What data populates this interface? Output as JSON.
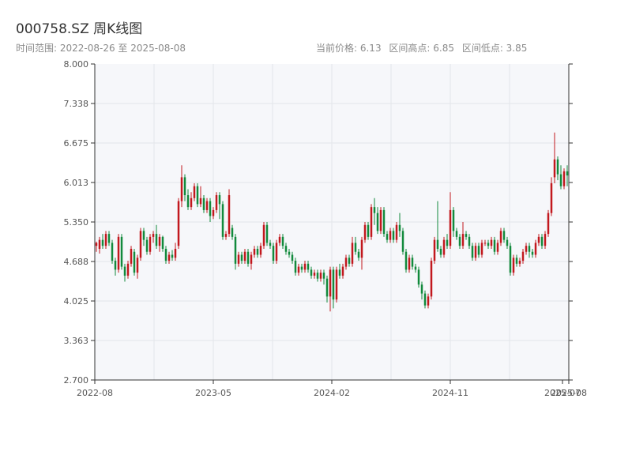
{
  "header": {
    "title": "000758.SZ 周K线图",
    "range_label": "时间范围: 2022-08-26 至 2025-08-08",
    "current_price_label": "当前价格: 6.13",
    "high_label": "区间高点: 6.85",
    "low_label": "区间低点: 3.85"
  },
  "colors": {
    "up": "#c2181e",
    "down": "#128a3c",
    "plot_bg": "#f6f7fa",
    "grid": "#e3e5ea",
    "axis": "#333333",
    "tick_text": "#555555"
  },
  "chart_data": {
    "type": "candlestick",
    "title": "000758.SZ 周K线图",
    "ylim": [
      2.7,
      8.0
    ],
    "ytick_labels": [
      "2.700",
      "3.363",
      "4.025",
      "4.688",
      "5.350",
      "6.013",
      "6.675",
      "7.338",
      "8.000"
    ],
    "xtick_labels": [
      "2022-08",
      "2023-05",
      "2024-02",
      "2024-11",
      "2025-07",
      "2025-08"
    ],
    "grid": true,
    "x_start": "2022-08-26",
    "x_end": "2025-08-08",
    "interval": "weekly",
    "candles": [
      [
        4.95,
        5.0,
        4.85,
        5.02
      ],
      [
        4.9,
        5.05,
        4.82,
        5.1
      ],
      [
        5.05,
        4.95,
        4.9,
        5.15
      ],
      [
        4.95,
        5.15,
        4.9,
        5.2
      ],
      [
        5.15,
        5.0,
        4.95,
        5.2
      ],
      [
        5.0,
        4.7,
        4.65,
        5.05
      ],
      [
        4.7,
        4.55,
        4.45,
        4.75
      ],
      [
        4.55,
        5.1,
        4.5,
        5.15
      ],
      [
        5.1,
        4.6,
        4.55,
        5.15
      ],
      [
        4.6,
        4.45,
        4.35,
        4.65
      ],
      [
        4.45,
        4.65,
        4.4,
        4.7
      ],
      [
        4.65,
        4.9,
        4.6,
        4.95
      ],
      [
        4.85,
        4.5,
        4.45,
        4.9
      ],
      [
        4.5,
        4.75,
        4.4,
        4.8
      ],
      [
        4.75,
        5.2,
        4.7,
        5.25
      ],
      [
        5.2,
        5.05,
        4.95,
        5.25
      ],
      [
        5.05,
        4.85,
        4.8,
        5.1
      ],
      [
        4.85,
        5.1,
        4.8,
        5.15
      ],
      [
        5.1,
        5.15,
        5.0,
        5.2
      ],
      [
        5.15,
        4.95,
        4.9,
        5.3
      ],
      [
        4.95,
        5.1,
        4.85,
        5.15
      ],
      [
        5.1,
        4.9,
        4.85,
        5.12
      ],
      [
        4.9,
        4.7,
        4.65,
        4.95
      ],
      [
        4.7,
        4.8,
        4.65,
        4.85
      ],
      [
        4.8,
        4.75,
        4.7,
        4.88
      ],
      [
        4.75,
        4.9,
        4.7,
        5.0
      ],
      [
        4.95,
        5.7,
        4.9,
        5.75
      ],
      [
        5.7,
        6.1,
        5.6,
        6.3
      ],
      [
        6.1,
        5.8,
        5.7,
        6.15
      ],
      [
        5.8,
        5.6,
        5.55,
        5.9
      ],
      [
        5.6,
        5.75,
        5.55,
        5.85
      ],
      [
        5.75,
        5.95,
        5.7,
        6.0
      ],
      [
        5.95,
        5.65,
        5.6,
        6.0
      ],
      [
        5.65,
        5.75,
        5.6,
        5.95
      ],
      [
        5.75,
        5.55,
        5.5,
        5.8
      ],
      [
        5.55,
        5.7,
        5.5,
        5.75
      ],
      [
        5.7,
        5.45,
        5.35,
        5.75
      ],
      [
        5.45,
        5.55,
        5.4,
        5.6
      ],
      [
        5.55,
        5.8,
        5.5,
        5.85
      ],
      [
        5.8,
        5.65,
        5.4,
        5.85
      ],
      [
        5.65,
        5.1,
        5.05,
        5.7
      ],
      [
        5.1,
        5.15,
        5.05,
        5.2
      ],
      [
        5.15,
        5.8,
        5.1,
        5.9
      ],
      [
        5.25,
        5.1,
        5.05,
        5.3
      ],
      [
        5.1,
        4.65,
        4.55,
        5.15
      ],
      [
        4.65,
        4.8,
        4.6,
        4.85
      ],
      [
        4.8,
        4.7,
        4.65,
        4.85
      ],
      [
        4.7,
        4.85,
        4.65,
        4.9
      ],
      [
        4.85,
        4.65,
        4.6,
        4.9
      ],
      [
        4.65,
        4.8,
        4.55,
        4.85
      ],
      [
        4.8,
        4.9,
        4.75,
        4.95
      ],
      [
        4.9,
        4.8,
        4.75,
        4.95
      ],
      [
        4.8,
        4.95,
        4.75,
        5.0
      ],
      [
        4.95,
        5.3,
        4.9,
        5.35
      ],
      [
        5.3,
        5.0,
        4.95,
        5.35
      ],
      [
        5.0,
        4.95,
        4.9,
        5.05
      ],
      [
        4.95,
        4.7,
        4.65,
        5.0
      ],
      [
        4.7,
        5.0,
        4.65,
        5.05
      ],
      [
        5.0,
        5.1,
        4.95,
        5.15
      ],
      [
        5.1,
        4.95,
        4.9,
        5.15
      ],
      [
        4.95,
        4.85,
        4.8,
        5.0
      ],
      [
        4.85,
        4.8,
        4.75,
        4.9
      ],
      [
        4.8,
        4.7,
        4.65,
        4.85
      ],
      [
        4.7,
        4.5,
        4.45,
        4.75
      ],
      [
        4.5,
        4.6,
        4.45,
        4.65
      ],
      [
        4.6,
        4.55,
        4.5,
        4.65
      ],
      [
        4.55,
        4.65,
        4.5,
        4.7
      ],
      [
        4.65,
        4.55,
        4.5,
        4.7
      ],
      [
        4.55,
        4.45,
        4.4,
        4.6
      ],
      [
        4.45,
        4.5,
        4.4,
        4.55
      ],
      [
        4.5,
        4.4,
        4.35,
        4.55
      ],
      [
        4.4,
        4.5,
        4.35,
        4.55
      ],
      [
        4.5,
        4.4,
        4.3,
        4.55
      ],
      [
        4.4,
        4.1,
        4.0,
        4.45
      ],
      [
        4.1,
        4.55,
        3.85,
        4.6
      ],
      [
        4.55,
        4.05,
        3.9,
        4.6
      ],
      [
        4.05,
        4.55,
        4.0,
        4.6
      ],
      [
        4.55,
        4.45,
        4.4,
        4.65
      ],
      [
        4.45,
        4.6,
        4.4,
        4.65
      ],
      [
        4.6,
        4.75,
        4.55,
        4.8
      ],
      [
        4.75,
        4.65,
        4.6,
        4.8
      ],
      [
        4.65,
        5.0,
        4.6,
        5.1
      ],
      [
        5.0,
        4.85,
        4.8,
        5.1
      ],
      [
        4.85,
        4.75,
        4.7,
        4.9
      ],
      [
        4.75,
        5.05,
        4.55,
        5.1
      ],
      [
        5.05,
        5.3,
        5.0,
        5.35
      ],
      [
        5.3,
        5.1,
        5.05,
        5.35
      ],
      [
        5.1,
        5.6,
        5.05,
        5.65
      ],
      [
        5.6,
        5.5,
        5.3,
        5.75
      ],
      [
        5.5,
        5.2,
        5.15,
        5.6
      ],
      [
        5.2,
        5.55,
        5.15,
        5.6
      ],
      [
        5.55,
        5.15,
        5.1,
        5.6
      ],
      [
        5.15,
        5.05,
        5.0,
        5.2
      ],
      [
        5.05,
        5.2,
        5.0,
        5.25
      ],
      [
        5.2,
        5.05,
        5.0,
        5.25
      ],
      [
        5.05,
        5.3,
        5.0,
        5.35
      ],
      [
        5.3,
        5.2,
        5.1,
        5.5
      ],
      [
        5.2,
        4.85,
        4.8,
        5.25
      ],
      [
        4.85,
        4.55,
        4.5,
        4.9
      ],
      [
        4.55,
        4.75,
        4.5,
        4.8
      ],
      [
        4.75,
        4.6,
        4.55,
        4.8
      ],
      [
        4.6,
        4.55,
        4.5,
        4.65
      ],
      [
        4.55,
        4.3,
        4.25,
        4.6
      ],
      [
        4.3,
        4.15,
        4.05,
        4.35
      ],
      [
        4.15,
        3.95,
        3.9,
        4.2
      ],
      [
        3.95,
        4.1,
        3.9,
        4.15
      ],
      [
        4.1,
        4.7,
        4.05,
        4.75
      ],
      [
        4.7,
        5.05,
        4.65,
        5.1
      ],
      [
        5.05,
        4.9,
        4.85,
        5.7
      ],
      [
        4.9,
        4.8,
        4.75,
        4.95
      ],
      [
        4.8,
        5.05,
        4.75,
        5.1
      ],
      [
        5.05,
        4.95,
        4.9,
        5.15
      ],
      [
        4.95,
        5.55,
        4.9,
        5.85
      ],
      [
        5.55,
        5.2,
        5.1,
        5.6
      ],
      [
        5.2,
        5.1,
        5.05,
        5.25
      ],
      [
        5.1,
        4.95,
        4.9,
        5.15
      ],
      [
        4.95,
        5.15,
        4.9,
        5.35
      ],
      [
        5.15,
        5.1,
        5.05,
        5.2
      ],
      [
        5.1,
        4.95,
        4.9,
        5.15
      ],
      [
        4.95,
        4.75,
        4.7,
        5.0
      ],
      [
        4.75,
        4.95,
        4.7,
        5.0
      ],
      [
        4.95,
        4.8,
        4.75,
        5.0
      ],
      [
        4.8,
        5.0,
        4.75,
        5.05
      ],
      [
        5.0,
        5.0,
        4.95,
        5.05
      ],
      [
        5.0,
        4.95,
        4.9,
        5.05
      ],
      [
        4.95,
        5.05,
        4.9,
        5.1
      ],
      [
        5.05,
        4.85,
        4.8,
        5.1
      ],
      [
        4.85,
        5.0,
        4.8,
        5.05
      ],
      [
        5.0,
        5.2,
        4.95,
        5.25
      ],
      [
        5.2,
        5.05,
        5.0,
        5.25
      ],
      [
        5.05,
        4.95,
        4.9,
        5.1
      ],
      [
        4.95,
        4.5,
        4.45,
        5.0
      ],
      [
        4.5,
        4.75,
        4.45,
        4.8
      ],
      [
        4.75,
        4.65,
        4.6,
        4.8
      ],
      [
        4.65,
        4.7,
        4.6,
        4.75
      ],
      [
        4.7,
        4.85,
        4.65,
        4.9
      ],
      [
        4.85,
        4.95,
        4.8,
        5.0
      ],
      [
        4.95,
        4.85,
        4.75,
        5.0
      ],
      [
        4.85,
        4.8,
        4.75,
        4.9
      ],
      [
        4.8,
        5.0,
        4.75,
        5.05
      ],
      [
        5.0,
        5.1,
        4.95,
        5.15
      ],
      [
        5.1,
        4.95,
        4.9,
        5.15
      ],
      [
        4.95,
        5.15,
        4.9,
        5.2
      ],
      [
        5.15,
        5.5,
        5.1,
        5.55
      ],
      [
        5.5,
        6.0,
        5.45,
        6.1
      ],
      [
        6.1,
        6.4,
        6.0,
        6.85
      ],
      [
        6.4,
        6.15,
        6.05,
        6.45
      ],
      [
        6.15,
        5.95,
        5.9,
        6.3
      ],
      [
        5.95,
        6.2,
        5.9,
        6.25
      ],
      [
        6.2,
        6.13,
        5.95,
        6.3
      ]
    ]
  }
}
